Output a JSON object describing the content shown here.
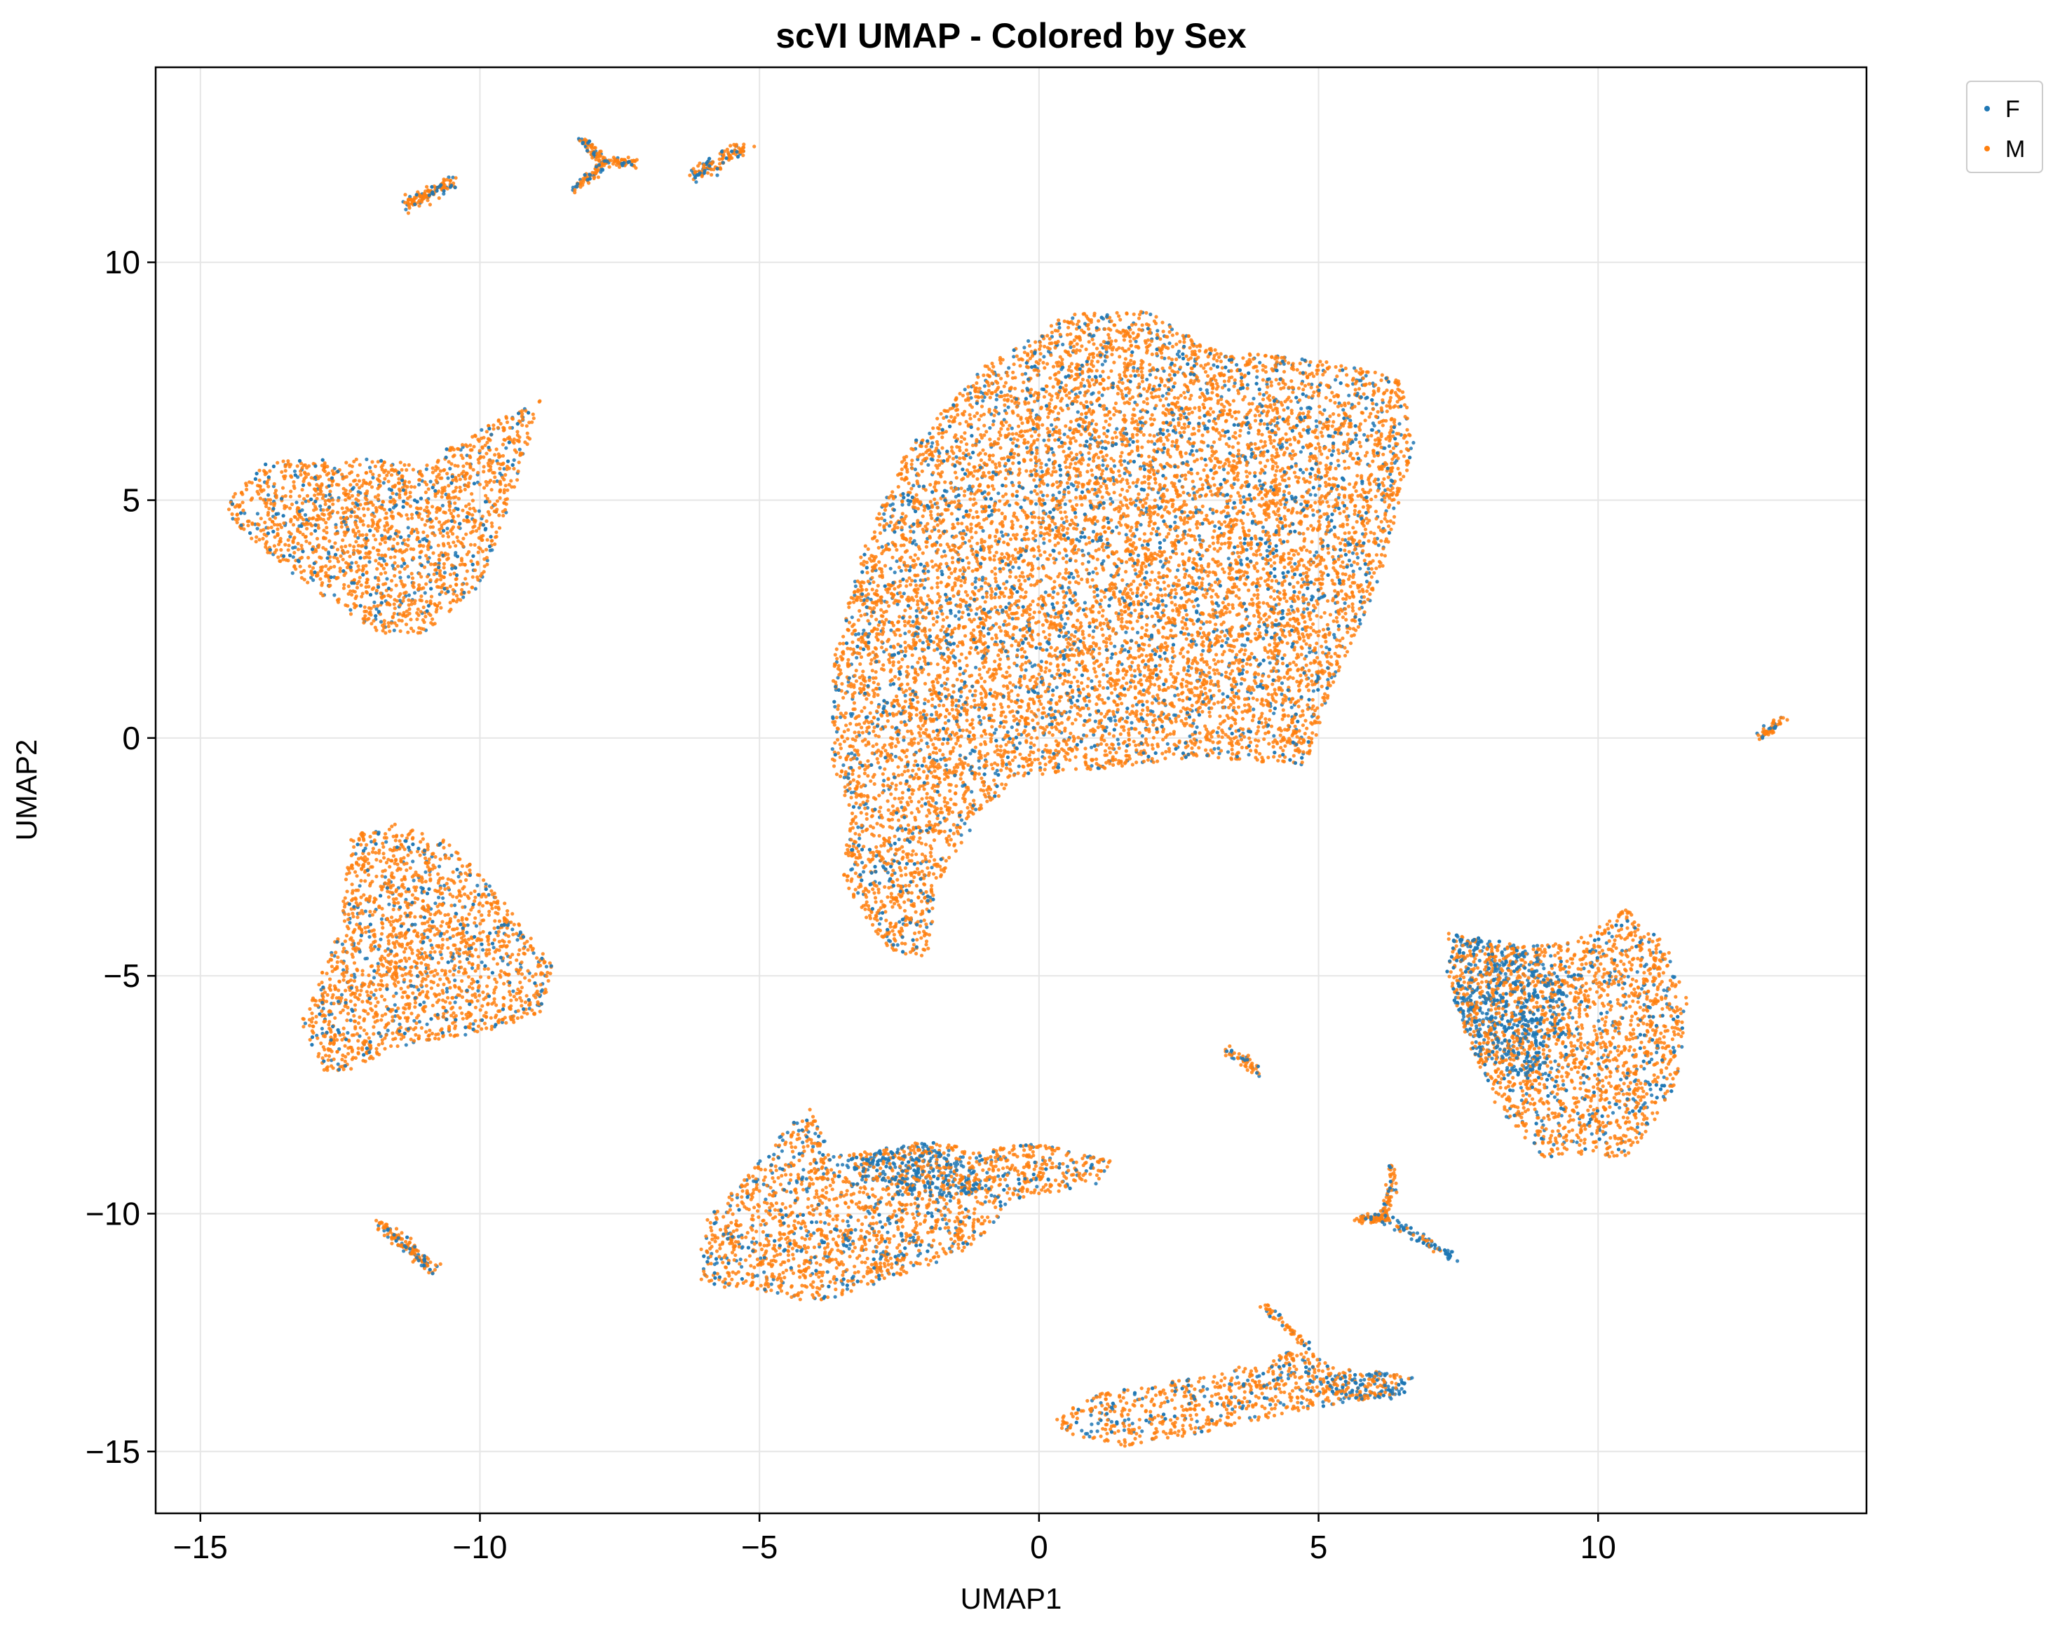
{
  "chart_data": {
    "type": "scatter",
    "title": "scVI UMAP - Colored by Sex",
    "xlabel": "UMAP1",
    "ylabel": "UMAP2",
    "xlim": [
      -15.8,
      14.8
    ],
    "ylim": [
      -16.3,
      14.1
    ],
    "xticks": [
      -15,
      -10,
      -5,
      0,
      5,
      10
    ],
    "yticks": [
      -15,
      -10,
      -5,
      0,
      5,
      10
    ],
    "xtick_labels": [
      "−15",
      "−10",
      "−5",
      "0",
      "5",
      "10"
    ],
    "ytick_labels": [
      "−15",
      "−10",
      "−5",
      "0",
      "5",
      "10"
    ],
    "grid": true,
    "legend_position": "outside top-right",
    "series": [
      {
        "name": "F",
        "color": "#1f77b4"
      },
      {
        "name": "M",
        "color": "#ff7f0e"
      }
    ],
    "clusters": [
      {
        "id": "central",
        "shape": "poly",
        "fem": 0.22,
        "poly": [
          [
            -3.7,
            1.5
          ],
          [
            -3.2,
            3.8
          ],
          [
            -2.4,
            6
          ],
          [
            -1,
            7.8
          ],
          [
            0.5,
            8.9
          ],
          [
            2,
            9
          ],
          [
            3,
            8.2
          ],
          [
            5.2,
            7.9
          ],
          [
            6.5,
            7.6
          ],
          [
            6.7,
            6.2
          ],
          [
            6.1,
            3.3
          ],
          [
            5.2,
            1
          ],
          [
            4.8,
            -0.6
          ],
          [
            3,
            -0.4
          ],
          [
            1.5,
            -0.6
          ],
          [
            -0.3,
            -0.8
          ],
          [
            -1,
            -1.5
          ],
          [
            -1.8,
            -3
          ],
          [
            -2,
            -4.6
          ],
          [
            -2.7,
            -4.5
          ],
          [
            -3.5,
            -3
          ],
          [
            -3.4,
            -1.5
          ],
          [
            -3.7,
            -0.5
          ]
        ]
      },
      {
        "id": "upper-left",
        "shape": "poly",
        "fem": 0.2,
        "poly": [
          [
            -14.5,
            5
          ],
          [
            -13.8,
            5.8
          ],
          [
            -12.5,
            5.9
          ],
          [
            -11,
            5.8
          ],
          [
            -9.5,
            6.8
          ],
          [
            -8.9,
            7.1
          ],
          [
            -9.3,
            5.5
          ],
          [
            -10,
            3.2
          ],
          [
            -11,
            2.2
          ],
          [
            -11.8,
            2.2
          ],
          [
            -13.2,
            3.3
          ],
          [
            -14.5,
            4.6
          ]
        ]
      },
      {
        "id": "left-triangle",
        "shape": "poly",
        "fem": 0.2,
        "poly": [
          [
            -12.8,
            -7
          ],
          [
            -13.2,
            -6
          ],
          [
            -12.5,
            -4
          ],
          [
            -12.3,
            -2
          ],
          [
            -11.5,
            -1.8
          ],
          [
            -10.5,
            -2.2
          ],
          [
            -9.5,
            -3.5
          ],
          [
            -8.7,
            -4.8
          ],
          [
            -8.9,
            -5.8
          ],
          [
            -10,
            -6.2
          ],
          [
            -11.5,
            -6.5
          ],
          [
            -12.3,
            -7
          ]
        ]
      },
      {
        "id": "bottom-left",
        "shape": "poly",
        "fem": 0.25,
        "poly": [
          [
            -6.1,
            -11.5
          ],
          [
            -6,
            -10.2
          ],
          [
            -5.3,
            -9.3
          ],
          [
            -4.5,
            -8.2
          ],
          [
            -4.1,
            -7.8
          ],
          [
            -3.7,
            -8.8
          ],
          [
            -2.5,
            -8.6
          ],
          [
            -1.9,
            -8.4
          ],
          [
            -1.2,
            -8.7
          ],
          [
            0,
            -8.5
          ],
          [
            1.3,
            -8.9
          ],
          [
            1,
            -9.4
          ],
          [
            -0.5,
            -9.7
          ],
          [
            -1,
            -10.5
          ],
          [
            -1.5,
            -10.9
          ],
          [
            -3,
            -11.5
          ],
          [
            -4,
            -11.9
          ],
          [
            -5,
            -11.6
          ]
        ]
      },
      {
        "id": "bottom-left-blue",
        "shape": "poly",
        "fem": 0.88,
        "poly": [
          [
            -3.7,
            -9
          ],
          [
            -2.8,
            -8.6
          ],
          [
            -1.9,
            -8.5
          ],
          [
            -1.2,
            -9
          ],
          [
            -0.8,
            -9.5
          ],
          [
            -1.8,
            -9.7
          ],
          [
            -3,
            -9.4
          ]
        ]
      },
      {
        "id": "bottom-center",
        "shape": "poly",
        "fem": 0.25,
        "poly": [
          [
            0.4,
            -14.6
          ],
          [
            1.5,
            -14.9
          ],
          [
            3,
            -14.6
          ],
          [
            4.8,
            -14.1
          ],
          [
            6.4,
            -13.8
          ],
          [
            6.7,
            -13.4
          ],
          [
            5.2,
            -13.2
          ],
          [
            4.8,
            -12.8
          ],
          [
            3,
            -13.4
          ],
          [
            1,
            -13.8
          ],
          [
            0.3,
            -14.3
          ]
        ]
      },
      {
        "id": "bottom-center-blue",
        "shape": "poly",
        "fem": 0.88,
        "poly": [
          [
            5.1,
            -13.4
          ],
          [
            6,
            -13.3
          ],
          [
            6.7,
            -13.4
          ],
          [
            6.5,
            -13.9
          ],
          [
            5.3,
            -13.9
          ]
        ]
      },
      {
        "id": "right",
        "shape": "poly",
        "fem": 0.22,
        "poly": [
          [
            7.3,
            -4.1
          ],
          [
            8.5,
            -4.4
          ],
          [
            9.5,
            -4.3
          ],
          [
            10.5,
            -3.6
          ],
          [
            11.2,
            -4.3
          ],
          [
            11.6,
            -5.5
          ],
          [
            11.4,
            -7.5
          ],
          [
            10.5,
            -8.8
          ],
          [
            9,
            -8.8
          ],
          [
            8.2,
            -7.8
          ],
          [
            7.6,
            -6.2
          ],
          [
            7.3,
            -5
          ]
        ]
      },
      {
        "id": "right-blue",
        "shape": "poly",
        "fem": 0.85,
        "poly": [
          [
            7.3,
            -4.1
          ],
          [
            8.4,
            -4.3
          ],
          [
            9.3,
            -4.8
          ],
          [
            9.5,
            -6.2
          ],
          [
            8.8,
            -7.2
          ],
          [
            7.9,
            -6.8
          ],
          [
            7.4,
            -5.5
          ]
        ]
      },
      {
        "id": "top-streak-1",
        "shape": "line",
        "fem": 0.3,
        "n": 120,
        "from": [
          -11.3,
          11.2
        ],
        "to": [
          -10.5,
          11.7
        ],
        "spread": 0.07
      },
      {
        "id": "top-star-a",
        "shape": "line",
        "fem": 0.3,
        "n": 60,
        "from": [
          -8.3,
          11.5
        ],
        "to": [
          -7.8,
          12.1
        ],
        "spread": 0.05
      },
      {
        "id": "top-star-b",
        "shape": "line",
        "fem": 0.3,
        "n": 60,
        "from": [
          -7.8,
          12.1
        ],
        "to": [
          -8.2,
          12.6
        ],
        "spread": 0.05
      },
      {
        "id": "top-star-c",
        "shape": "line",
        "fem": 0.3,
        "n": 60,
        "from": [
          -7.8,
          12.1
        ],
        "to": [
          -7.2,
          12.1
        ],
        "spread": 0.05
      },
      {
        "id": "top-streak-2",
        "shape": "line",
        "fem": 0.3,
        "n": 120,
        "from": [
          -6.2,
          11.8
        ],
        "to": [
          -5.3,
          12.4
        ],
        "spread": 0.07
      },
      {
        "id": "far-right-streak",
        "shape": "line",
        "fem": 0.3,
        "n": 50,
        "from": [
          12.9,
          0
        ],
        "to": [
          13.3,
          0.4
        ],
        "spread": 0.05
      },
      {
        "id": "left-streak",
        "shape": "line",
        "fem": 0.3,
        "n": 140,
        "from": [
          -11.8,
          -10.2
        ],
        "to": [
          -10.8,
          -11.2
        ],
        "spread": 0.06
      },
      {
        "id": "mid-small",
        "shape": "line",
        "fem": 0.3,
        "n": 50,
        "from": [
          3.4,
          -6.6
        ],
        "to": [
          3.9,
          -7
        ],
        "spread": 0.06
      },
      {
        "id": "star-right-a",
        "shape": "line",
        "fem": 0.35,
        "n": 60,
        "from": [
          6.3,
          -9
        ],
        "to": [
          6.2,
          -10.1
        ],
        "spread": 0.05
      },
      {
        "id": "star-right-b",
        "shape": "line",
        "fem": 0.3,
        "n": 60,
        "from": [
          6.2,
          -10.1
        ],
        "to": [
          5.7,
          -10.1
        ],
        "spread": 0.05
      },
      {
        "id": "star-right-c",
        "shape": "line",
        "fem": 0.7,
        "n": 80,
        "from": [
          6.2,
          -10.1
        ],
        "to": [
          7.4,
          -10.9
        ],
        "spread": 0.05
      },
      {
        "id": "bottom-left-spike",
        "shape": "line",
        "fem": 0.3,
        "n": 50,
        "from": [
          4,
          -11.9
        ],
        "to": [
          4.8,
          -12.8
        ],
        "spread": 0.04
      }
    ]
  },
  "legend": {
    "items": [
      {
        "label": "F",
        "color": "#1f77b4"
      },
      {
        "label": "M",
        "color": "#ff7f0e"
      }
    ]
  }
}
